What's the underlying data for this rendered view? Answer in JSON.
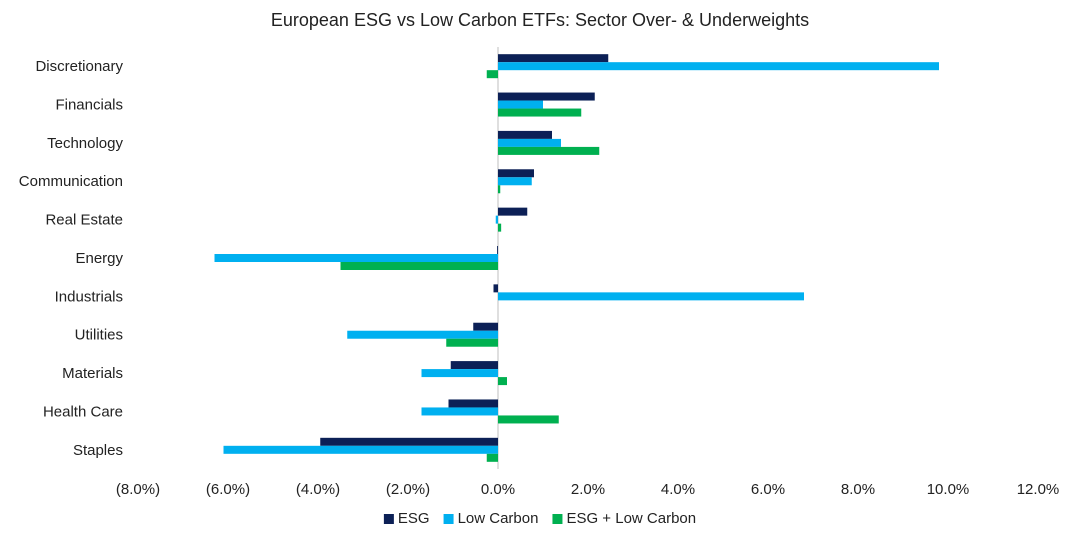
{
  "chart_data": {
    "type": "hbar",
    "title": "European ESG vs Low Carbon ETFs: Sector Over- & Underweights",
    "categories": [
      "Discretionary",
      "Financials",
      "Technology",
      "Communication",
      "Real Estate",
      "Energy",
      "Industrials",
      "Utilities",
      "Materials",
      "Health Care",
      "Staples"
    ],
    "series": [
      {
        "name": "ESG",
        "color": "#0c2056",
        "values": [
          2.45,
          2.15,
          1.2,
          0.8,
          0.65,
          -0.02,
          -0.1,
          -0.55,
          -1.05,
          -1.1,
          -3.95
        ]
      },
      {
        "name": "Low Carbon",
        "color": "#00b0f0",
        "values": [
          9.8,
          1.0,
          1.4,
          0.75,
          -0.05,
          -6.3,
          6.8,
          -3.35,
          -1.7,
          -1.7,
          -6.1
        ]
      },
      {
        "name": "ESG + Low Carbon",
        "color": "#00b050",
        "values": [
          -0.25,
          1.85,
          2.25,
          0.05,
          0.07,
          -3.5,
          0,
          -1.15,
          0.2,
          1.35,
          -0.25
        ]
      }
    ],
    "xlim": [
      -8,
      12
    ],
    "xticks": [
      {
        "value": -8,
        "label": "(8.0%)"
      },
      {
        "value": -6,
        "label": "(6.0%)"
      },
      {
        "value": -4,
        "label": "(4.0%)"
      },
      {
        "value": -2,
        "label": "(2.0%)"
      },
      {
        "value": 0,
        "label": "0.0%"
      },
      {
        "value": 2,
        "label": "2.0%"
      },
      {
        "value": 4,
        "label": "4.0%"
      },
      {
        "value": 6,
        "label": "6.0%"
      },
      {
        "value": 8,
        "label": "8.0%"
      },
      {
        "value": 10,
        "label": "10.0%"
      },
      {
        "value": 12,
        "label": "12.0%"
      }
    ],
    "legend": "bottom"
  }
}
